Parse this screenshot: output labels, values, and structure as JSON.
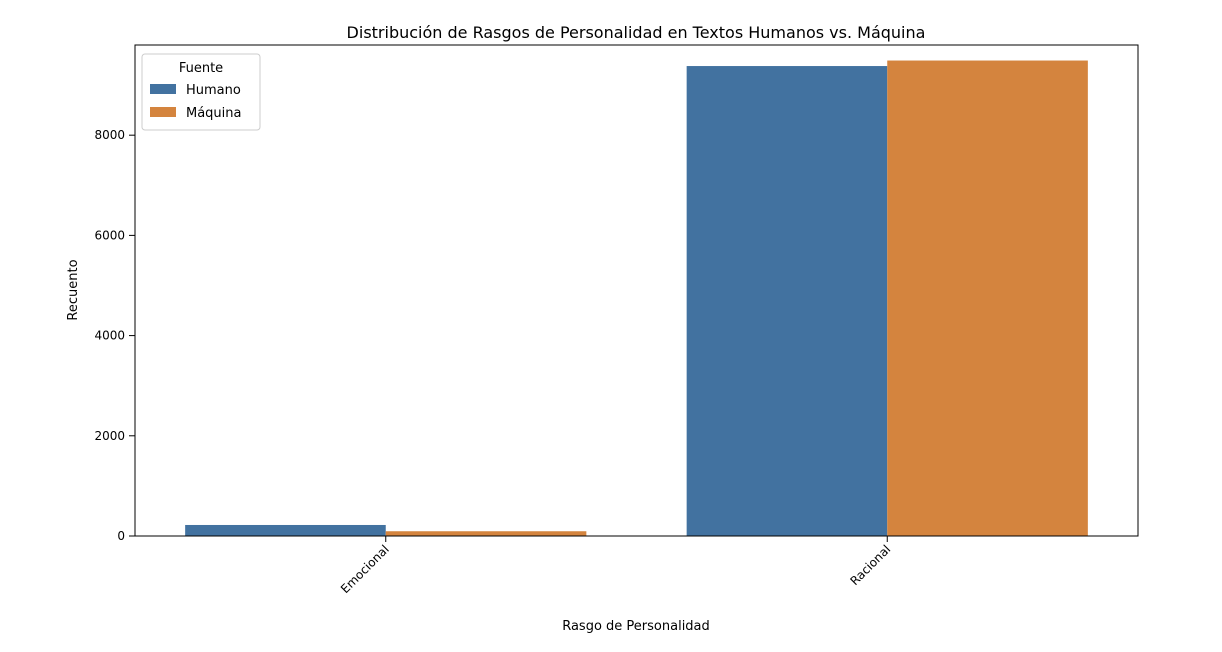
{
  "chart_data": {
    "type": "bar",
    "title": "Distribución de Rasgos de Personalidad en Textos Humanos vs. Máquina",
    "xlabel": "Rasgo de Personalidad",
    "ylabel": "Recuento",
    "categories": [
      "Emocional",
      "Racional"
    ],
    "series": [
      {
        "name": "Humano",
        "color": "#4272A0",
        "values": [
          220,
          9380
        ]
      },
      {
        "name": "Máquina",
        "color": "#D4843E",
        "values": [
          95,
          9490
        ]
      }
    ],
    "ylim": [
      0,
      9800
    ],
    "yticks": [
      0,
      2000,
      4000,
      6000,
      8000
    ],
    "grid": false,
    "legend": {
      "title": "Fuente",
      "position": "top-left"
    }
  }
}
